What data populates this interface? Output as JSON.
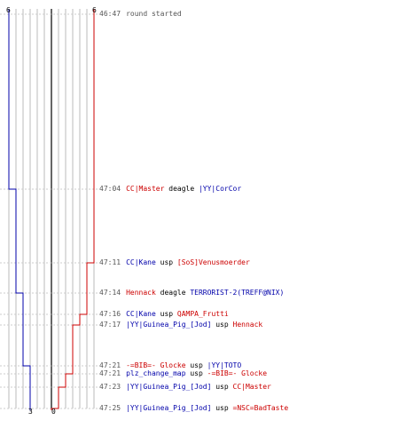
{
  "colors": {
    "team_blue": "#0000aa",
    "team_red": "#cc0000",
    "time": "#555555",
    "neutral": "#000000",
    "grid": "#bbbbbb",
    "center": "#666666"
  },
  "scores": {
    "blue_start": "6",
    "red_start": "6",
    "blue_end": "3",
    "red_end": "0"
  },
  "timeline": [
    {
      "time": "46:47",
      "parts": [
        {
          "text": "round started",
          "color": "time"
        }
      ],
      "blue": 6,
      "red": 6
    },
    {
      "time": "47:04",
      "parts": [
        {
          "text": "CC|Master",
          "color": "team_red"
        },
        {
          "text": " deagle ",
          "color": "neutral"
        },
        {
          "text": "|YY|CorCor",
          "color": "team_blue"
        }
      ],
      "blue": 5,
      "red": 6
    },
    {
      "time": "47:11",
      "parts": [
        {
          "text": "CC|Kane",
          "color": "team_blue"
        },
        {
          "text": " usp ",
          "color": "neutral"
        },
        {
          "text": "[SoS]Venusmoerder",
          "color": "team_red"
        }
      ],
      "blue": 5,
      "red": 5
    },
    {
      "time": "47:14",
      "parts": [
        {
          "text": "Hennack",
          "color": "team_red"
        },
        {
          "text": " deagle ",
          "color": "neutral"
        },
        {
          "text": "TERRORIST-2(TREFF@NIX)",
          "color": "team_blue"
        }
      ],
      "blue": 4,
      "red": 5
    },
    {
      "time": "47:16",
      "parts": [
        {
          "text": "CC|Kane",
          "color": "team_blue"
        },
        {
          "text": " usp ",
          "color": "neutral"
        },
        {
          "text": "QAMPA_Frutti",
          "color": "team_red"
        }
      ],
      "blue": 4,
      "red": 4
    },
    {
      "time": "47:17",
      "parts": [
        {
          "text": "|YY|Guinea_Pig_[Jod]",
          "color": "team_blue"
        },
        {
          "text": " usp ",
          "color": "neutral"
        },
        {
          "text": "Hennack",
          "color": "team_red"
        }
      ],
      "blue": 4,
      "red": 3
    },
    {
      "time": "47:21",
      "parts": [
        {
          "text": "-=BIB=- Glocke",
          "color": "team_red"
        },
        {
          "text": " usp ",
          "color": "neutral"
        },
        {
          "text": "|YY|TOTO",
          "color": "team_blue"
        }
      ],
      "blue": 3,
      "red": 3
    },
    {
      "time": "47:21",
      "parts": [
        {
          "text": "plz_change_map",
          "color": "team_blue"
        },
        {
          "text": " usp ",
          "color": "neutral"
        },
        {
          "text": "-=BIB=- Glocke",
          "color": "team_red"
        }
      ],
      "blue": 3,
      "red": 2
    },
    {
      "time": "47:23",
      "parts": [
        {
          "text": "|YY|Guinea_Pig_[Jod]",
          "color": "team_blue"
        },
        {
          "text": " usp ",
          "color": "neutral"
        },
        {
          "text": "CC|Master",
          "color": "team_red"
        }
      ],
      "blue": 3,
      "red": 1
    },
    {
      "time": "47:25",
      "parts": [
        {
          "text": "|YY|Guinea_Pig_[Jod]",
          "color": "team_blue"
        },
        {
          "text": " usp ",
          "color": "neutral"
        },
        {
          "text": "=NSC=BadTaste",
          "color": "team_red"
        }
      ],
      "blue": 3,
      "red": 0
    }
  ]
}
